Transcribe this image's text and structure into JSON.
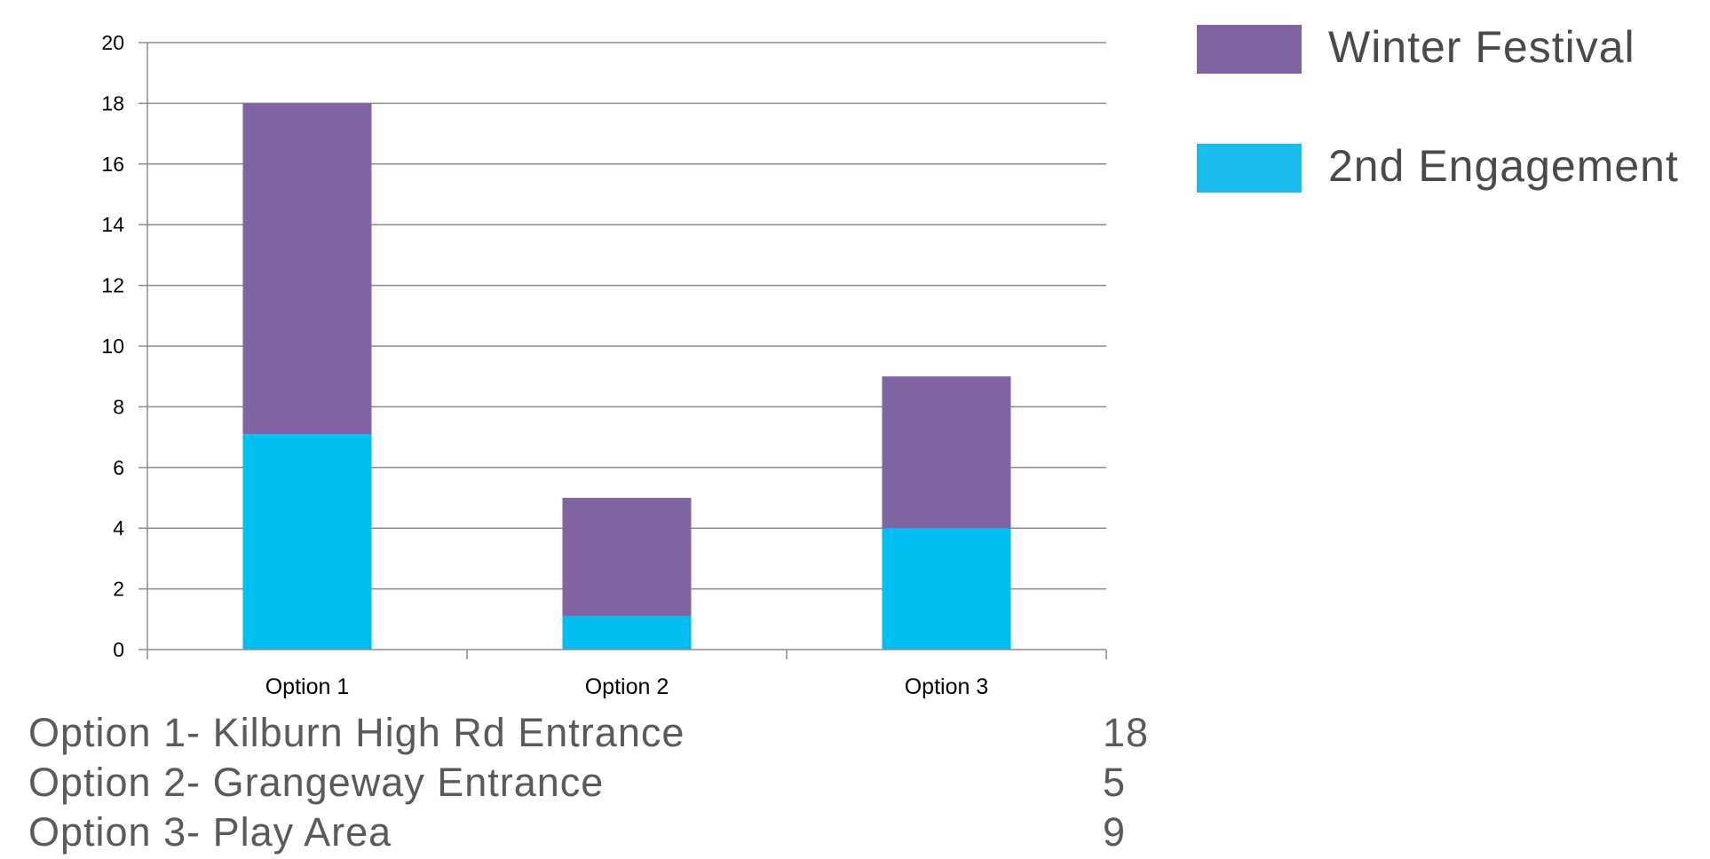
{
  "chart_data": {
    "type": "bar",
    "stacked": true,
    "categories": [
      "Option 1",
      "Option 2",
      "Option 3"
    ],
    "series": [
      {
        "name": "2nd Engagement",
        "values": [
          7.1,
          1.1,
          4
        ],
        "color": "#00BDF2"
      },
      {
        "name": "Winter Festival",
        "values": [
          10.9,
          3.9,
          5
        ],
        "color": "#8064A2"
      }
    ],
    "ylim": [
      0,
      20
    ],
    "yticks": [
      0,
      2,
      4,
      6,
      8,
      10,
      12,
      14,
      16,
      18,
      20
    ],
    "grid": true,
    "legend_position": "right",
    "xlabel": "",
    "ylabel": ""
  },
  "legend": {
    "items": [
      {
        "label": "Winter Festival",
        "color": "#8064A2"
      },
      {
        "label": "2nd Engagement",
        "color": "#1BBDED"
      }
    ]
  },
  "summary": {
    "rows": [
      {
        "label": "Option 1- Kilburn High Rd Entrance",
        "value": "18"
      },
      {
        "label": "Option 2- Grangeway Entrance",
        "value": "5"
      },
      {
        "label": "Option 3- Play Area",
        "value": "9"
      }
    ]
  }
}
